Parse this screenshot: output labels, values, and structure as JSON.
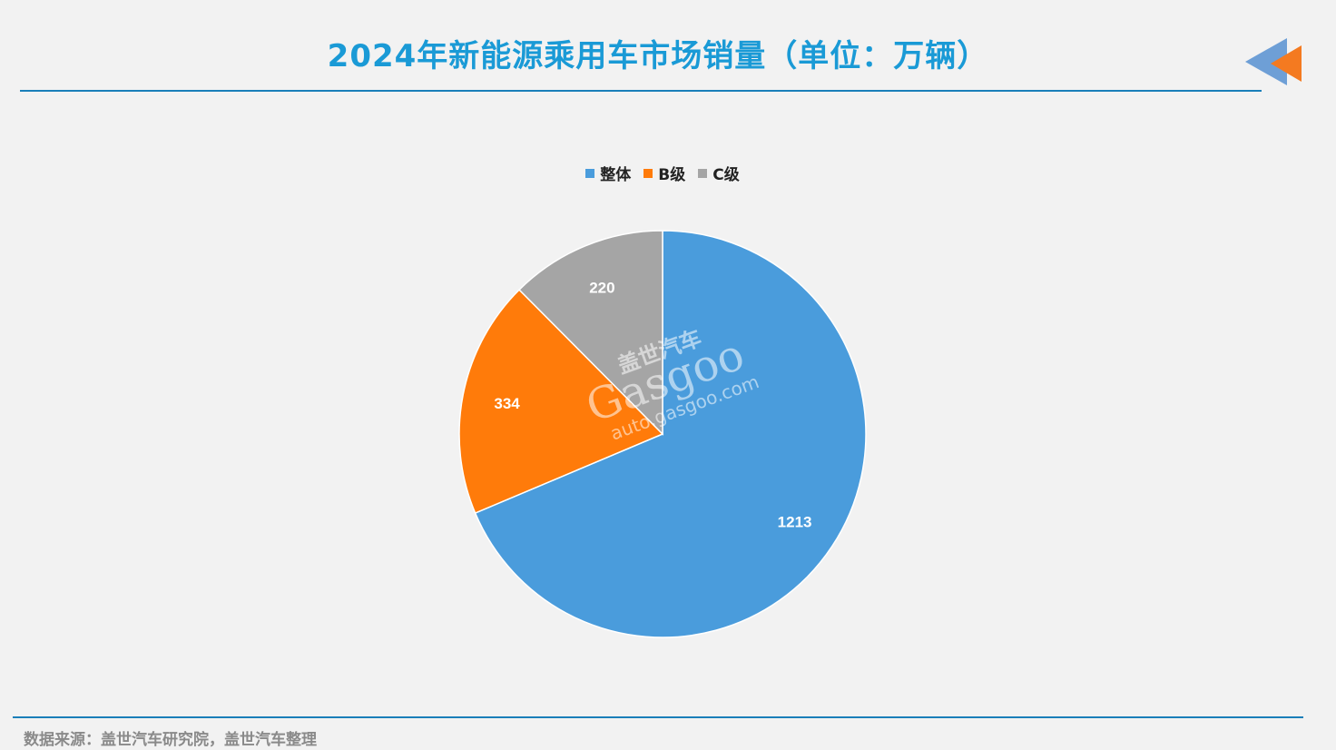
{
  "title": "2024年新能源乘用车市场销量（单位：万辆）",
  "source": "数据来源：盖世汽车研究院，盖世汽车整理",
  "watermark": {
    "brand_cn": "盖世汽车",
    "brand_en": "Gasgoo",
    "url": "auto.gasgoo.com"
  },
  "colors": {
    "title": "#1a9ad6",
    "rule": "#1a7fb9",
    "logo_blue": "#6e9fd6",
    "logo_orange": "#f47a20"
  },
  "chart_data": {
    "type": "pie",
    "title": "2024年新能源乘用车市场销量（单位：万辆）",
    "legend_position": "top",
    "slices": [
      {
        "label": "整体",
        "value": 1213,
        "color": "#4a9cdc"
      },
      {
        "label": "B级",
        "value": 334,
        "color": "#ff7b0a"
      },
      {
        "label": "C级",
        "value": 220,
        "color": "#a5a5a5"
      }
    ]
  }
}
